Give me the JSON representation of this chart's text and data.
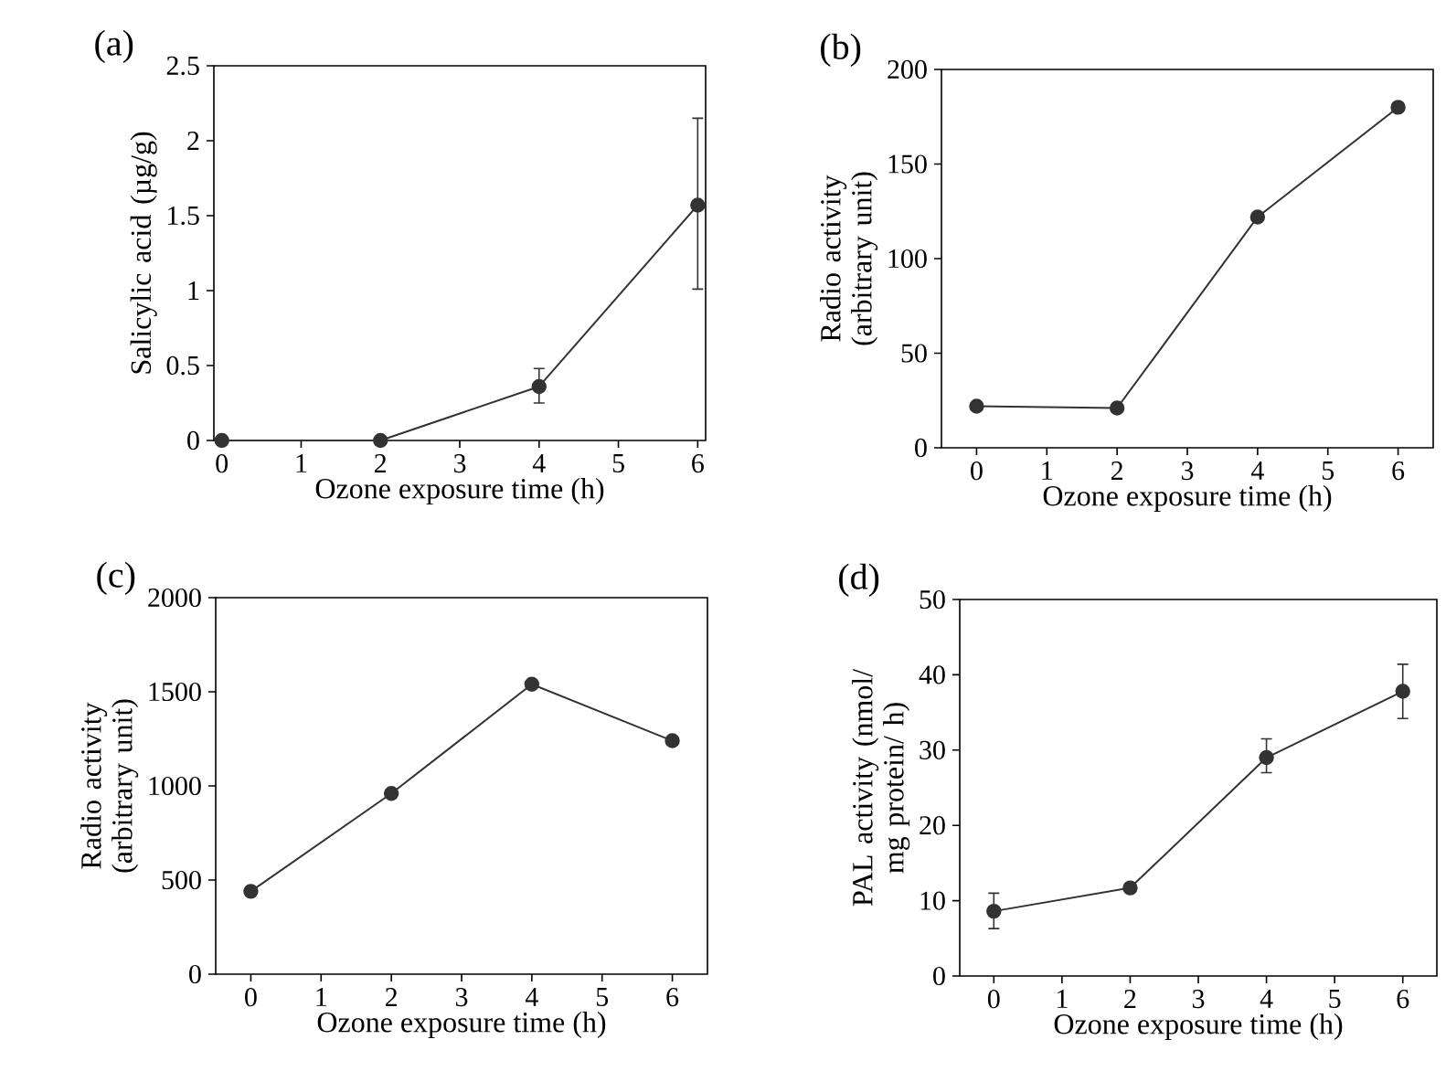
{
  "chart_data": [
    {
      "type": "line",
      "title": "(a)",
      "xlabel": "Ozone exposure time (h)",
      "ylabel": "Salicylic acid (µg/g)",
      "x": [
        0,
        2,
        4,
        6
      ],
      "values": [
        0,
        0,
        0.36,
        1.57
      ],
      "errors": [
        null,
        null,
        [
          0.25,
          0.48
        ],
        [
          1.01,
          2.15
        ]
      ],
      "color": "#333333",
      "marker": "circle",
      "line_style": "solid",
      "xlim": [
        -0.1,
        6.1
      ],
      "xticks": [
        0,
        1,
        2,
        3,
        4,
        5,
        6
      ],
      "ylim": [
        0,
        2.5
      ],
      "yticks": [
        0,
        0.5,
        1,
        1.5,
        2,
        2.5
      ],
      "grid": false
    },
    {
      "type": "line",
      "title": "(b)",
      "xlabel": "Ozone exposure time (h)",
      "ylabel": "Radio activity (arbitrary unit)",
      "x": [
        0,
        2,
        4,
        6
      ],
      "values": [
        22,
        21,
        122,
        180
      ],
      "color": "#333333",
      "marker": "circle",
      "line_style": "solid",
      "xlim": [
        -0.5,
        6.5
      ],
      "xticks": [
        0,
        1,
        2,
        3,
        4,
        5,
        6
      ],
      "ylim": [
        0,
        200
      ],
      "yticks": [
        0,
        50,
        100,
        150,
        200
      ],
      "grid": false
    },
    {
      "type": "line",
      "title": "(c)",
      "xlabel": "Ozone exposure time (h)",
      "ylabel": "Radio activity (arbitrary unit)",
      "x": [
        0,
        2,
        4,
        6
      ],
      "values": [
        440,
        960,
        1540,
        1240
      ],
      "color": "#333333",
      "marker": "circle",
      "line_style": "solid",
      "xlim": [
        -0.5,
        6.5
      ],
      "xticks": [
        0,
        1,
        2,
        3,
        4,
        5,
        6
      ],
      "ylim": [
        0,
        2000
      ],
      "yticks": [
        0,
        500,
        1000,
        1500,
        2000
      ],
      "grid": false
    },
    {
      "type": "line",
      "title": "(d)",
      "xlabel": "Ozone exposure time (h)",
      "ylabel": "PAL activity (nmol/ mg protein/ h)",
      "x": [
        0,
        2,
        4,
        6
      ],
      "values": [
        8.6,
        11.7,
        29,
        37.8
      ],
      "errors": [
        [
          6.3,
          11
        ],
        null,
        [
          27,
          31.5
        ],
        [
          34.2,
          41.4
        ]
      ],
      "color": "#333333",
      "marker": "circle",
      "line_style": "solid",
      "xlim": [
        -0.5,
        6.5
      ],
      "xticks": [
        0,
        1,
        2,
        3,
        4,
        5,
        6
      ],
      "ylim": [
        0,
        50
      ],
      "yticks": [
        0,
        10,
        20,
        30,
        40,
        50
      ],
      "grid": false
    }
  ]
}
